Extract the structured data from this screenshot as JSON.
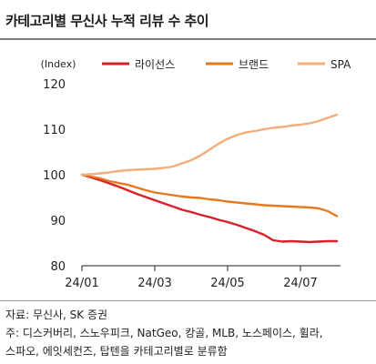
{
  "header": {
    "title": "카테고리별 무신사 누적 리뷰 수 추이"
  },
  "footer": {
    "source": "자료: 무신사, SK 증권",
    "note_line1": "주: 디스커버리, 스노우피크, NatGeo, 캉골, MLB, 노스페이스, 휠라,",
    "note_line2": "스파오, 에잇세컨즈, 탑텐을 카테고리별로 분류함"
  },
  "colors": {
    "license": "#d9202a",
    "brand": "#e7781e",
    "spa": "#f3ad7a",
    "axis": "#222222"
  },
  "chart_data": {
    "type": "line",
    "ylabel": "(Index)",
    "ylim": [
      80,
      120
    ],
    "yticks": [
      80,
      90,
      100,
      110,
      120
    ],
    "xlim": [
      0,
      7
    ],
    "xticks": [
      {
        "x": 0,
        "label": "24/01"
      },
      {
        "x": 2,
        "label": "24/03"
      },
      {
        "x": 4,
        "label": "24/05"
      },
      {
        "x": 6,
        "label": "24/07"
      }
    ],
    "legend_position": "top",
    "grid": false,
    "series": [
      {
        "name": "라이선스",
        "color": "#d9202a",
        "x": [
          0,
          0.25,
          0.5,
          0.75,
          1,
          1.25,
          1.5,
          1.75,
          2,
          2.25,
          2.5,
          2.75,
          3,
          3.25,
          3.5,
          3.75,
          4,
          4.25,
          4.5,
          4.75,
          5,
          5.25,
          5.5,
          5.75,
          6,
          6.25,
          6.5,
          6.75,
          7
        ],
        "values": [
          100,
          99.4,
          98.8,
          98.1,
          97.4,
          96.6,
          95.8,
          95.1,
          94.4,
          93.7,
          93.0,
          92.3,
          91.8,
          91.2,
          90.7,
          90.1,
          89.6,
          89.0,
          88.3,
          87.6,
          86.8,
          85.6,
          85.3,
          85.4,
          85.3,
          85.2,
          85.3,
          85.4,
          85.4
        ]
      },
      {
        "name": "브랜드",
        "color": "#e7781e",
        "x": [
          0,
          0.25,
          0.5,
          0.75,
          1,
          1.25,
          1.5,
          1.75,
          2,
          2.25,
          2.5,
          2.75,
          3,
          3.25,
          3.5,
          3.75,
          4,
          4.25,
          4.5,
          4.75,
          5,
          5.25,
          5.5,
          5.75,
          6,
          6.25,
          6.5,
          6.75,
          7
        ],
        "values": [
          100,
          99.6,
          99.2,
          98.6,
          98.2,
          97.8,
          97.2,
          96.6,
          96.1,
          95.8,
          95.5,
          95.2,
          95.0,
          94.9,
          94.6,
          94.4,
          94.1,
          93.9,
          93.7,
          93.5,
          93.3,
          93.2,
          93.1,
          93.0,
          92.9,
          92.8,
          92.6,
          92.0,
          90.9
        ]
      },
      {
        "name": "SPA",
        "color": "#f3ad7a",
        "x": [
          0,
          0.25,
          0.5,
          0.75,
          1,
          1.25,
          1.5,
          1.75,
          2,
          2.25,
          2.5,
          2.75,
          3,
          3.25,
          3.5,
          3.75,
          4,
          4.25,
          4.5,
          4.75,
          5,
          5.25,
          5.5,
          5.75,
          6,
          6.25,
          6.5,
          6.75,
          7
        ],
        "values": [
          100,
          100.1,
          100.3,
          100.5,
          100.8,
          101.0,
          101.1,
          101.2,
          101.3,
          101.5,
          101.8,
          102.5,
          103.2,
          104.2,
          105.5,
          106.8,
          107.9,
          108.7,
          109.3,
          109.6,
          110.0,
          110.3,
          110.5,
          110.8,
          111.0,
          111.3,
          111.8,
          112.5,
          113.2
        ]
      }
    ]
  }
}
